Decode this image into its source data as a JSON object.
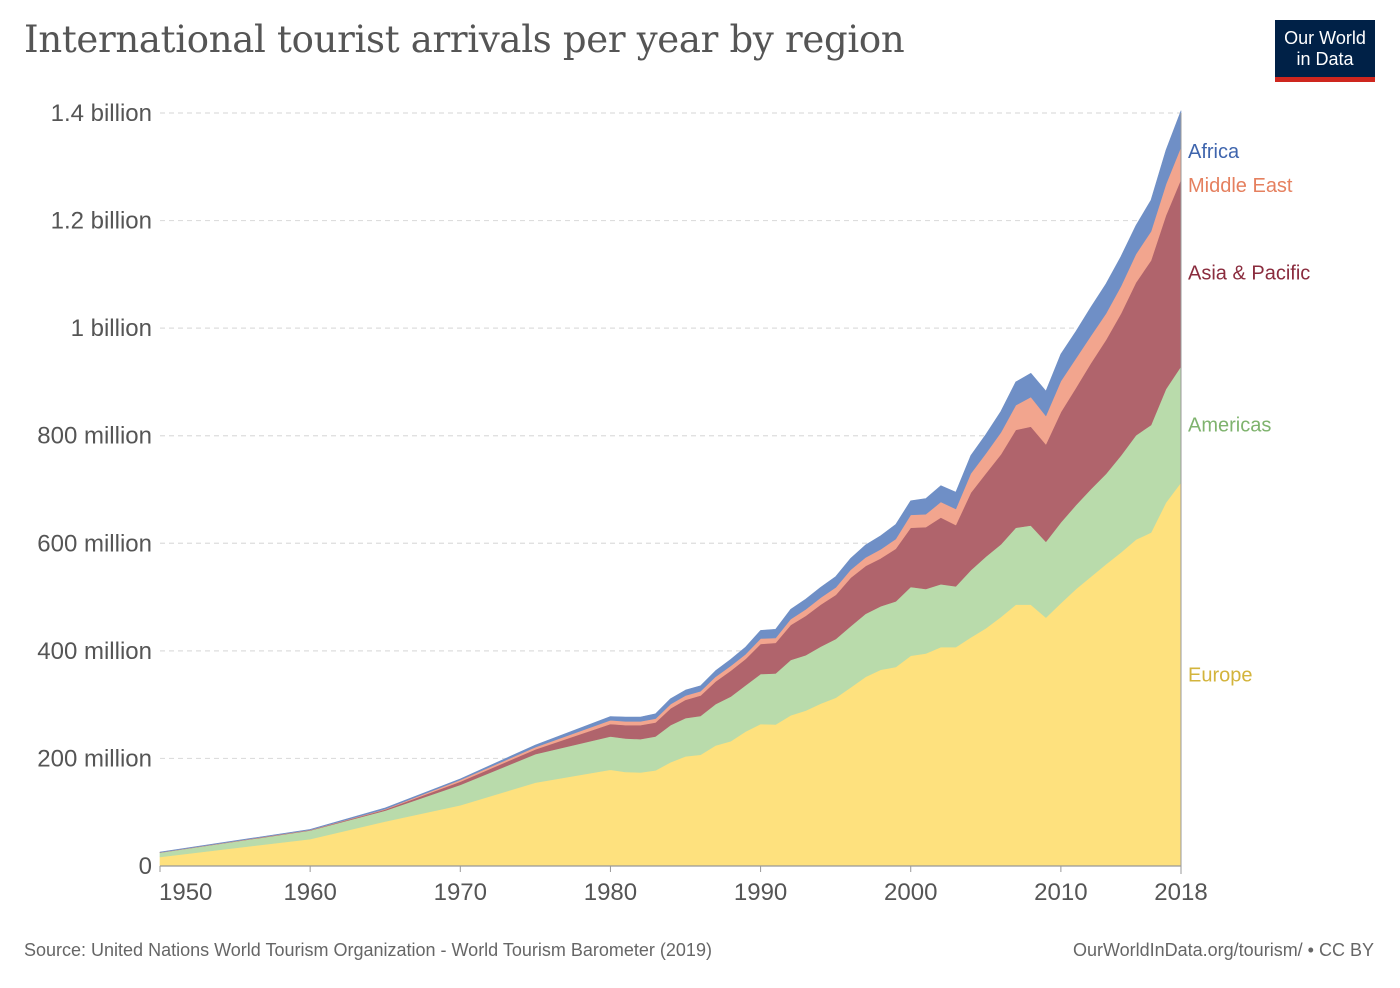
{
  "title": "International tourist arrivals per year by region",
  "logo": {
    "line1": "Our World",
    "line2": "in Data",
    "bg": "#002147",
    "accent": "#ce261e"
  },
  "footer": {
    "source": "Source: United Nations World Tourism Organization - World Tourism Barometer (2019)",
    "credit": "OurWorldInData.org/tourism/ • CC BY"
  },
  "chart_data": {
    "type": "area",
    "stacked": true,
    "title": "International tourist arrivals per year by region",
    "xlabel": "",
    "ylabel": "",
    "xlim": [
      1950,
      2018
    ],
    "ylim": [
      0,
      1400000000
    ],
    "grid": true,
    "x_ticks": [
      {
        "value": 1950,
        "label": "1950"
      },
      {
        "value": 1960,
        "label": "1960"
      },
      {
        "value": 1970,
        "label": "1970"
      },
      {
        "value": 1980,
        "label": "1980"
      },
      {
        "value": 1990,
        "label": "1990"
      },
      {
        "value": 2000,
        "label": "2000"
      },
      {
        "value": 2010,
        "label": "2010"
      },
      {
        "value": 2018,
        "label": "2018"
      }
    ],
    "y_ticks": [
      {
        "value": 0,
        "label": "0"
      },
      {
        "value": 200000000,
        "label": "200 million"
      },
      {
        "value": 400000000,
        "label": "400 million"
      },
      {
        "value": 600000000,
        "label": "600 million"
      },
      {
        "value": 800000000,
        "label": "800 million"
      },
      {
        "value": 1000000000,
        "label": "1 billion"
      },
      {
        "value": 1200000000,
        "label": "1.2 billion"
      },
      {
        "value": 1400000000,
        "label": "1.4 billion"
      }
    ],
    "legend_placement": "right, inline at series ends",
    "x": [
      1950,
      1960,
      1965,
      1970,
      1975,
      1980,
      1981,
      1982,
      1983,
      1984,
      1985,
      1986,
      1987,
      1988,
      1989,
      1990,
      1991,
      1992,
      1993,
      1994,
      1995,
      1996,
      1997,
      1998,
      1999,
      2000,
      2001,
      2002,
      2003,
      2004,
      2005,
      2006,
      2007,
      2008,
      2009,
      2010,
      2011,
      2012,
      2013,
      2014,
      2015,
      2016,
      2017,
      2018
    ],
    "series": [
      {
        "name": "Europe",
        "color": "#fee17e",
        "label_color": "#d3b43c",
        "values": [
          17,
          50,
          83,
          113,
          155,
          179,
          175,
          174,
          178,
          193,
          204,
          207,
          224,
          232,
          250,
          264,
          263,
          280,
          289,
          302,
          313,
          332,
          352,
          365,
          370,
          391,
          395,
          407,
          407,
          425,
          442,
          463,
          486,
          486,
          462,
          489,
          515,
          538,
          561,
          583,
          607,
          620,
          676,
          713
        ]
      },
      {
        "name": "Americas",
        "color": "#b9dbab",
        "label_color": "#7fb36e",
        "values": [
          8,
          16,
          20,
          38,
          53,
          62,
          62,
          62,
          63,
          69,
          71,
          72,
          77,
          83,
          86,
          93,
          95,
          103,
          103,
          106,
          109,
          114,
          117,
          118,
          122,
          128,
          120,
          117,
          113,
          125,
          133,
          135,
          143,
          147,
          141,
          150,
          156,
          163,
          168,
          180,
          194,
          200,
          211,
          216
        ]
      },
      {
        "name": "Asia & Pacific",
        "color": "#b0646c",
        "label_color": "#8a2c3e",
        "values": [
          0.2,
          0.7,
          2,
          6,
          9,
          23,
          25,
          26,
          26,
          31,
          34,
          38,
          42,
          48,
          49,
          56,
          57,
          65,
          73,
          78,
          82,
          90,
          89,
          89,
          98,
          110,
          115,
          124,
          114,
          144,
          155,
          167,
          182,
          184,
          181,
          205,
          218,
          234,
          249,
          264,
          284,
          306,
          323,
          348
        ]
      },
      {
        "name": "Middle East",
        "color": "#f2a58e",
        "label_color": "#e5805f",
        "values": [
          0.2,
          0.6,
          1,
          3,
          4,
          7,
          7,
          7,
          7,
          8,
          8,
          8,
          9,
          9,
          9,
          10,
          9,
          11,
          12,
          13,
          14,
          15,
          16,
          17,
          18,
          24,
          24,
          29,
          30,
          36,
          37,
          41,
          46,
          55,
          53,
          58,
          55,
          51,
          49,
          51,
          53,
          54,
          58,
          60
        ]
      },
      {
        "name": "Africa",
        "color": "#6f8fc6",
        "label_color": "#3f65ad",
        "values": [
          0.5,
          0.8,
          2,
          2,
          4,
          7,
          8,
          8,
          9,
          10,
          10,
          10,
          11,
          12,
          13,
          15,
          16,
          18,
          19,
          19,
          20,
          21,
          23,
          25,
          27,
          26,
          29,
          30,
          31,
          33,
          35,
          39,
          43,
          44,
          46,
          50,
          50,
          53,
          55,
          55,
          53,
          58,
          63,
          67
        ]
      }
    ],
    "value_unit": "million",
    "labels": [
      {
        "series": "Africa",
        "text": "Africa"
      },
      {
        "series": "Middle East",
        "text": "Middle East"
      },
      {
        "series": "Asia & Pacific",
        "text": "Asia & Pacific"
      },
      {
        "series": "Americas",
        "text": "Americas"
      },
      {
        "series": "Europe",
        "text": "Europe"
      }
    ]
  }
}
